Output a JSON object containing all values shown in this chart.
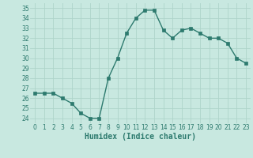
{
  "x": [
    0,
    1,
    2,
    3,
    4,
    5,
    6,
    7,
    8,
    9,
    10,
    11,
    12,
    13,
    14,
    15,
    16,
    17,
    18,
    19,
    20,
    21,
    22,
    23
  ],
  "y": [
    26.5,
    26.5,
    26.5,
    26.0,
    25.5,
    24.5,
    24.0,
    24.0,
    28.0,
    30.0,
    32.5,
    34.0,
    34.8,
    34.8,
    32.8,
    32.0,
    32.8,
    33.0,
    32.5,
    32.0,
    32.0,
    31.5,
    30.0,
    29.5
  ],
  "xlabel": "Humidex (Indice chaleur)",
  "line_color": "#2d7a6e",
  "marker_color": "#2d7a6e",
  "bg_color": "#c8e8e0",
  "grid_color": "#aed4ca",
  "xlim": [
    -0.5,
    23.5
  ],
  "ylim": [
    23.5,
    35.5
  ],
  "yticks": [
    24,
    25,
    26,
    27,
    28,
    29,
    30,
    31,
    32,
    33,
    34,
    35
  ],
  "xticks": [
    0,
    1,
    2,
    3,
    4,
    5,
    6,
    7,
    8,
    9,
    10,
    11,
    12,
    13,
    14,
    15,
    16,
    17,
    18,
    19,
    20,
    21,
    22,
    23
  ],
  "xtick_labels": [
    "0",
    "1",
    "2",
    "3",
    "4",
    "5",
    "6",
    "7",
    "8",
    "9",
    "10",
    "11",
    "12",
    "13",
    "14",
    "15",
    "16",
    "17",
    "18",
    "19",
    "20",
    "21",
    "22",
    "23"
  ],
  "tick_fontsize": 5.5,
  "xlabel_fontsize": 7,
  "line_width": 1.0,
  "marker_size": 2.5
}
